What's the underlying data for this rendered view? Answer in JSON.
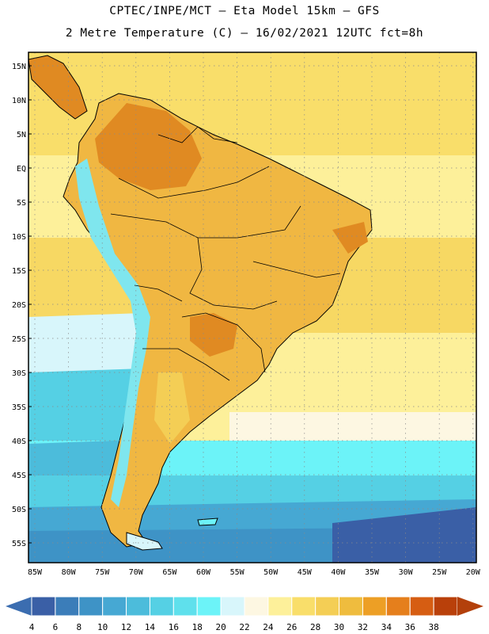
{
  "header": {
    "line1": "CPTEC/INPE/MCT –  Eta Model 15km – GFS",
    "line2": "2 Metre Temperature (C) – 16/02/2021 12UTC fct=8h"
  },
  "axes": {
    "lat_labels": [
      "15N",
      "10N",
      "5N",
      "EQ",
      "5S",
      "10S",
      "15S",
      "20S",
      "25S",
      "30S",
      "35S",
      "40S",
      "45S",
      "50S",
      "55S"
    ],
    "lon_labels": [
      "85W",
      "80W",
      "75W",
      "70W",
      "65W",
      "60W",
      "55W",
      "50W",
      "45W",
      "40W",
      "35W",
      "30W",
      "25W",
      "20W"
    ]
  },
  "colorbar": {
    "labels": [
      "4",
      "6",
      "8",
      "10",
      "12",
      "14",
      "16",
      "18",
      "20",
      "22",
      "24",
      "26",
      "28",
      "30",
      "32",
      "34",
      "36",
      "38"
    ],
    "colors": [
      "#3a5fa6",
      "#3b7db9",
      "#3e93c6",
      "#46a8d3",
      "#4cbcdb",
      "#55d0e4",
      "#5fe0ec",
      "#6cf3f8",
      "#d8f6fb",
      "#fdf7e2",
      "#fdf09a",
      "#f9de6a",
      "#f4ce55",
      "#efbc3e",
      "#ed9f25",
      "#e57f1c",
      "#d65d12",
      "#b9400a"
    ],
    "low_arrow_color": "#3b6db0",
    "high_arrow_color": "#b3400b"
  },
  "palette": {
    "land_base": "#f0b742",
    "land_hot": "#e08a22",
    "andes_cold": "#7fe6ee",
    "border": "#000000"
  }
}
